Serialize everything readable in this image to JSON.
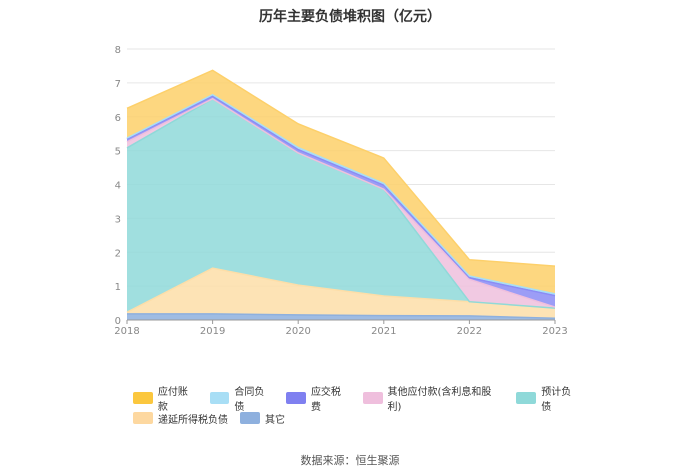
{
  "chart_data": {
    "type": "area",
    "stacked": true,
    "title": "历年主要负债堆积图（亿元）",
    "xlabel": "",
    "ylabel": "",
    "ylim": [
      0,
      8
    ],
    "yticks": [
      0,
      1,
      2,
      3,
      4,
      5,
      6,
      7,
      8
    ],
    "grid": true,
    "legend_position": "bottom",
    "categories": [
      "2018",
      "2019",
      "2020",
      "2021",
      "2022",
      "2023"
    ],
    "series": [
      {
        "name": "其它",
        "color": "#8eb0de",
        "values": [
          0.18,
          0.18,
          0.15,
          0.13,
          0.12,
          0.05
        ]
      },
      {
        "name": "递延所得税负债",
        "color": "#fddea8",
        "values": [
          0.05,
          1.35,
          0.88,
          0.58,
          0.42,
          0.3
        ]
      },
      {
        "name": "预计负债",
        "color": "#8fd9d9",
        "values": [
          4.85,
          5.0,
          3.9,
          3.15,
          0.0,
          0.0
        ]
      },
      {
        "name": "其他应付款(含利息和股利)",
        "color": "#efbfdd",
        "values": [
          0.18,
          0.0,
          0.0,
          0.0,
          0.66,
          0.03
        ]
      },
      {
        "name": "应交税费",
        "color": "#8b8cf5",
        "values": [
          0.08,
          0.08,
          0.1,
          0.12,
          0.05,
          0.34
        ]
      },
      {
        "name": "合同负债",
        "color": "#a8def5",
        "values": [
          0.03,
          0.04,
          0.06,
          0.05,
          0.05,
          0.05
        ]
      },
      {
        "name": "应付账款",
        "color": "#fdd06a",
        "values": [
          0.88,
          0.72,
          0.7,
          0.75,
          0.48,
          0.82
        ]
      }
    ]
  },
  "legend": {
    "row1": [
      {
        "label": "应付账款",
        "color": "#fbc73e"
      },
      {
        "label": "合同负债",
        "color": "#a8def5"
      },
      {
        "label": "应交税费",
        "color": "#7f80f0"
      },
      {
        "label": "其他应付款(含利息和股利)",
        "color": "#efbfdd"
      },
      {
        "label": "预计负债",
        "color": "#8fd9d9"
      }
    ],
    "row2": [
      {
        "label": "递延所得税负债",
        "color": "#fdd8a0"
      },
      {
        "label": "其它",
        "color": "#8eb0de"
      }
    ]
  },
  "source": "数据来源：恒生聚源"
}
